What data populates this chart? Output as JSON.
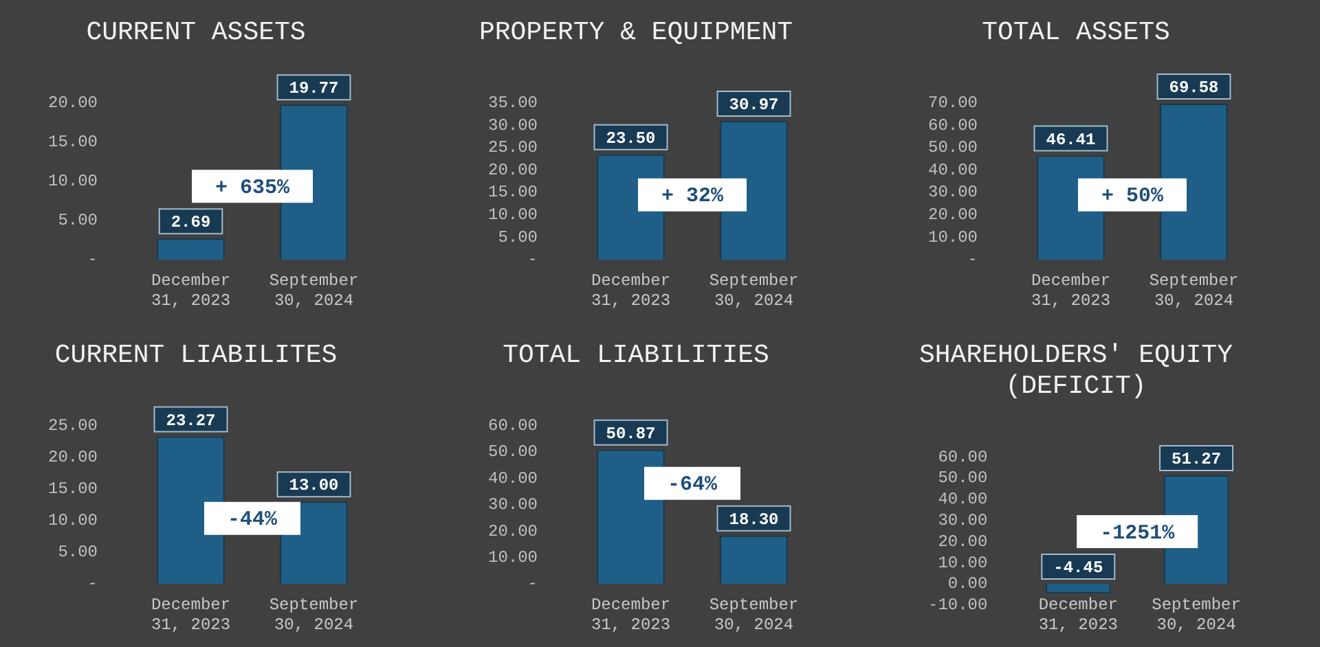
{
  "chart_data": [
    {
      "type": "bar",
      "title": "CURRENT ASSETS",
      "categories": [
        "December 31, 2023",
        "September 30, 2024"
      ],
      "values": [
        2.69,
        19.77
      ],
      "value_labels": [
        "2.69",
        "19.77"
      ],
      "color": "#1f5f87",
      "ylim": [
        0,
        20
      ],
      "yticks": [
        {
          "value": 0,
          "label": "-"
        },
        {
          "value": 5,
          "label": "5.00"
        },
        {
          "value": 10,
          "label": "10.00"
        },
        {
          "value": 15,
          "label": "15.00"
        },
        {
          "value": 20,
          "label": "20.00"
        }
      ],
      "annotations": [
        "+ 635%"
      ]
    },
    {
      "type": "bar",
      "title": "PROPERTY & EQUIPMENT",
      "categories": [
        "December 31, 2023",
        "September 30, 2024"
      ],
      "values": [
        23.5,
        30.97
      ],
      "value_labels": [
        "23.50",
        "30.97"
      ],
      "color": "#1f5f87",
      "ylim": [
        0,
        35
      ],
      "yticks": [
        {
          "value": 0,
          "label": "-"
        },
        {
          "value": 5,
          "label": "5.00"
        },
        {
          "value": 10,
          "label": "10.00"
        },
        {
          "value": 15,
          "label": "15.00"
        },
        {
          "value": 20,
          "label": "20.00"
        },
        {
          "value": 25,
          "label": "25.00"
        },
        {
          "value": 30,
          "label": "30.00"
        },
        {
          "value": 35,
          "label": "35.00"
        }
      ],
      "annotations": [
        "+ 32%"
      ]
    },
    {
      "type": "bar",
      "title": "TOTAL ASSETS",
      "categories": [
        "December 31, 2023",
        "September 30, 2024"
      ],
      "values": [
        46.41,
        69.58
      ],
      "value_labels": [
        "46.41",
        "69.58"
      ],
      "color": "#1f5f87",
      "ylim": [
        0,
        70
      ],
      "yticks": [
        {
          "value": 0,
          "label": "-"
        },
        {
          "value": 10,
          "label": "10.00"
        },
        {
          "value": 20,
          "label": "20.00"
        },
        {
          "value": 30,
          "label": "30.00"
        },
        {
          "value": 40,
          "label": "40.00"
        },
        {
          "value": 50,
          "label": "50.00"
        },
        {
          "value": 60,
          "label": "60.00"
        },
        {
          "value": 70,
          "label": "70.00"
        }
      ],
      "annotations": [
        "+ 50%"
      ]
    },
    {
      "type": "bar",
      "title": "CURRENT LIABILITES",
      "categories": [
        "December 31, 2023",
        "September 30, 2024"
      ],
      "values": [
        23.27,
        13.0
      ],
      "value_labels": [
        "23.27",
        "13.00"
      ],
      "color": "#1f5f87",
      "ylim": [
        0,
        25
      ],
      "yticks": [
        {
          "value": 0,
          "label": "-"
        },
        {
          "value": 5,
          "label": "5.00"
        },
        {
          "value": 10,
          "label": "10.00"
        },
        {
          "value": 15,
          "label": "15.00"
        },
        {
          "value": 20,
          "label": "20.00"
        },
        {
          "value": 25,
          "label": "25.00"
        }
      ],
      "annotations": [
        "-44%"
      ]
    },
    {
      "type": "bar",
      "title": "TOTAL LIABILITIES",
      "categories": [
        "December 31, 2023",
        "September 30, 2024"
      ],
      "values": [
        50.87,
        18.3
      ],
      "value_labels": [
        "50.87",
        "18.30"
      ],
      "color": "#1f5f87",
      "ylim": [
        0,
        60
      ],
      "yticks": [
        {
          "value": 0,
          "label": "-"
        },
        {
          "value": 10,
          "label": "10.00"
        },
        {
          "value": 20,
          "label": "20.00"
        },
        {
          "value": 30,
          "label": "30.00"
        },
        {
          "value": 40,
          "label": "40.00"
        },
        {
          "value": 50,
          "label": "50.00"
        },
        {
          "value": 60,
          "label": "60.00"
        }
      ],
      "annotations": [
        "-64%"
      ]
    },
    {
      "type": "bar",
      "title": "SHAREHOLDERS' EQUITY (DEFICIT)",
      "categories": [
        "December 31, 2023",
        "September 30, 2024"
      ],
      "values": [
        -4.45,
        51.27
      ],
      "value_labels": [
        "-4.45",
        "51.27"
      ],
      "color": "#1f5f87",
      "ylim": [
        -10,
        60
      ],
      "yticks": [
        {
          "value": -10,
          "label": "-10.00"
        },
        {
          "value": 0,
          "label": "0.00"
        },
        {
          "value": 10,
          "label": "10.00"
        },
        {
          "value": 20,
          "label": "20.00"
        },
        {
          "value": 30,
          "label": "30.00"
        },
        {
          "value": 40,
          "label": "40.00"
        },
        {
          "value": 50,
          "label": "50.00"
        },
        {
          "value": 60,
          "label": "60.00"
        }
      ],
      "annotations": [
        "-1251%"
      ]
    }
  ]
}
